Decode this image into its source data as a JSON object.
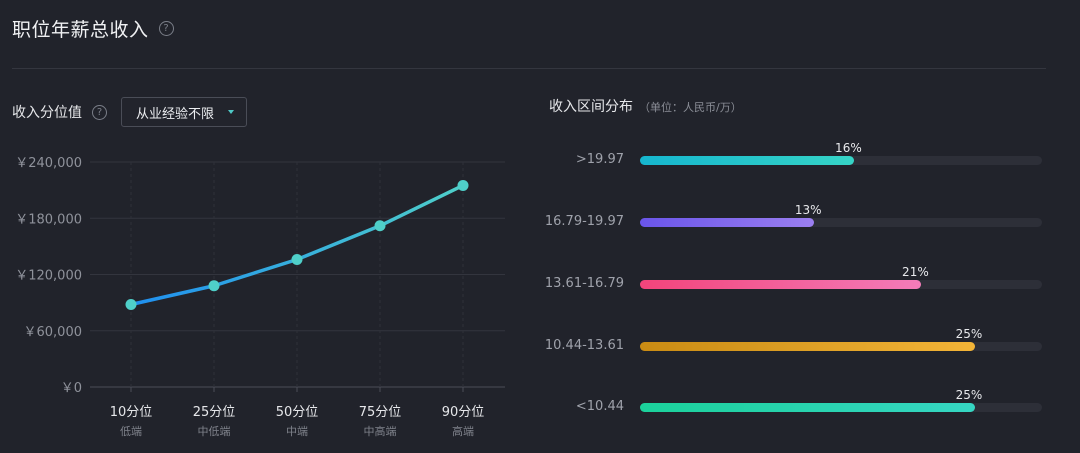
{
  "header": {
    "title": "职位年薪总收入",
    "help_icon": "question-circle-icon"
  },
  "left_panel": {
    "label": "收入分位值",
    "help_icon": "question-circle-icon",
    "dropdown": {
      "selected": "从业经验不限",
      "icon": "caret-down-icon"
    }
  },
  "right_panel": {
    "title": "收入区间分布",
    "unit": "（单位：人民币/万）"
  },
  "chart_data": [
    {
      "type": "line",
      "categories": [
        "10分位",
        "25分位",
        "50分位",
        "75分位",
        "90分位"
      ],
      "sublabels": [
        "低端",
        "中低端",
        "中端",
        "中高端",
        "高端"
      ],
      "values": [
        88000,
        108000,
        136000,
        172000,
        215000
      ],
      "yticks": [
        "￥0",
        "￥60,000",
        "￥120,000",
        "￥180,000",
        "￥240,000"
      ],
      "ylim": [
        0,
        240000
      ],
      "grid": true,
      "colors": {
        "line_start": "#1f8ff0",
        "line_end": "#4fcfc9",
        "marker": "#4fcfc9"
      }
    },
    {
      "type": "bar",
      "orientation": "horizontal",
      "categories": [
        ">19.97",
        "16.79-19.97",
        "13.61-16.79",
        "10.44-13.61",
        "<10.44"
      ],
      "values": [
        16,
        13,
        21,
        25,
        25
      ],
      "value_labels": [
        "16%",
        "13%",
        "21%",
        "25%",
        "25%"
      ],
      "unit": "%",
      "scale_max": 30,
      "colors": [
        [
          "#16b6cf",
          "#36d4c6"
        ],
        [
          "#6a55ea",
          "#9b7ff0"
        ],
        [
          "#f2447b",
          "#f47cb9"
        ],
        [
          "#c98b13",
          "#f3b437"
        ],
        [
          "#1bd19b",
          "#36d6c3"
        ]
      ]
    }
  ]
}
